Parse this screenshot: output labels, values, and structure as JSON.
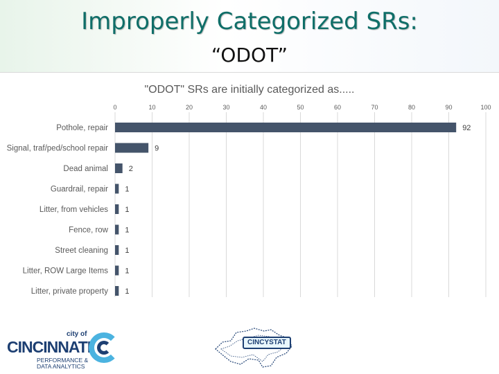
{
  "slide": {
    "title": "Improperly Categorized SRs:",
    "subtitle": "“ODOT”"
  },
  "chart_data": {
    "type": "bar",
    "orientation": "horizontal",
    "title": "\"ODOT\" SRs are initially categorized as.....",
    "xlabel": "",
    "ylabel": "",
    "xlim": [
      0,
      100
    ],
    "x_ticks": [
      "0",
      "10",
      "20",
      "30",
      "40",
      "50",
      "60",
      "70",
      "80",
      "90",
      "100"
    ],
    "categories": [
      "Pothole, repair",
      "Signal, traf/ped/school repair",
      "Dead animal",
      "Guardrail, repair",
      "Litter, from vehicles",
      "Fence, row",
      "Street cleaning",
      "Litter, ROW Large Items",
      "Litter, private property"
    ],
    "values": [
      92,
      9,
      2,
      1,
      1,
      1,
      1,
      1,
      1
    ],
    "value_labels": [
      "92",
      "9",
      "2",
      "1",
      "1",
      "1",
      "1",
      "1",
      "1"
    ],
    "grid": true,
    "legend": "none",
    "bar_color": "#44546a"
  },
  "footer": {
    "left_logo": {
      "city_of": "city of",
      "name": "CINCINNATI",
      "line1": "PERFORMANCE &",
      "line2": "DATA ANALYTICS"
    },
    "right_logo": {
      "badge": "CINCYSTAT"
    }
  }
}
